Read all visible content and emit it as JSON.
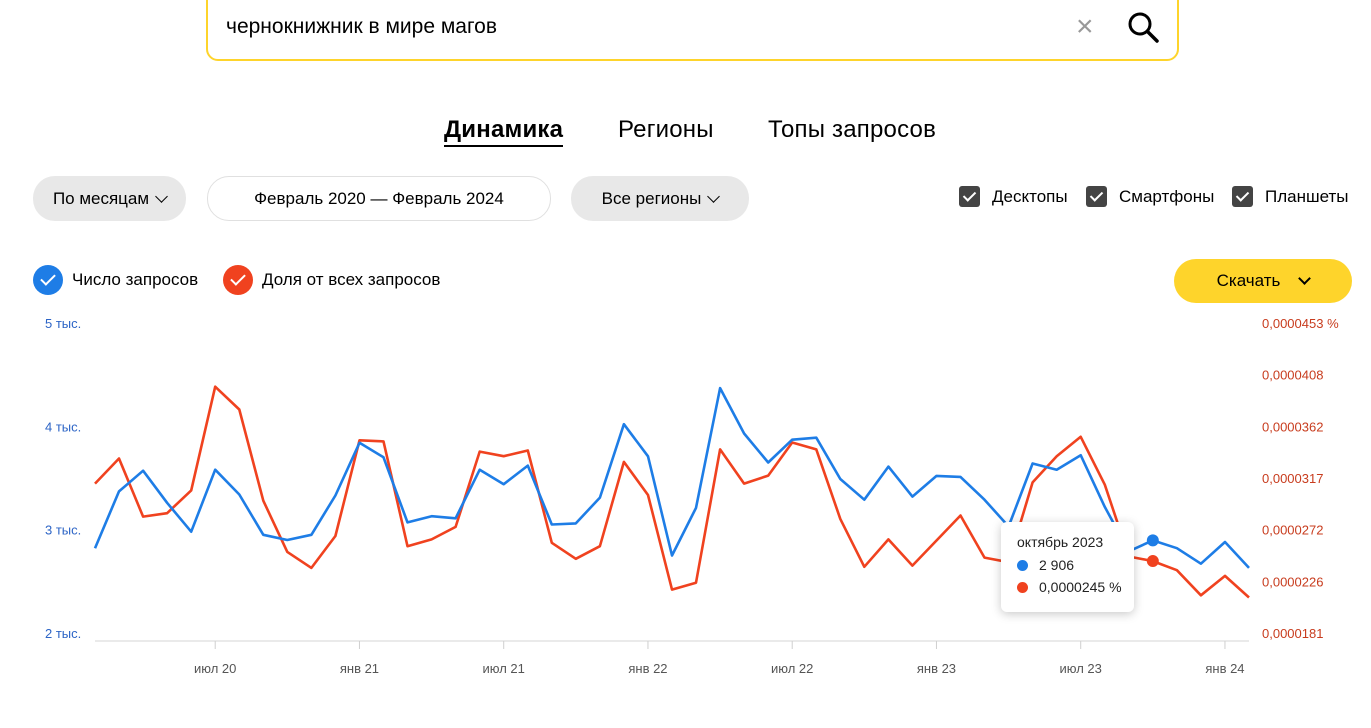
{
  "search": {
    "query": "чернокнижник в мире магов",
    "clear_icon": "close-icon",
    "search_icon": "search-icon"
  },
  "tabs": [
    {
      "label": "Динамика",
      "active": true
    },
    {
      "label": "Регионы",
      "active": false
    },
    {
      "label": "Топы запросов",
      "active": false
    }
  ],
  "filters": {
    "period_group": "По месяцам",
    "date_range": "Февраль 2020 — Февраль 2024",
    "regions": "Все регионы"
  },
  "devices": [
    {
      "label": "Десктопы",
      "checked": true
    },
    {
      "label": "Смартфоны",
      "checked": true
    },
    {
      "label": "Планшеты",
      "checked": true
    }
  ],
  "legend": [
    {
      "label": "Число запросов",
      "color": "#1e7de6"
    },
    {
      "label": "Доля от всех запросов",
      "color": "#f0421f"
    }
  ],
  "download_label": "Скачать",
  "tooltip": {
    "title": "октябрь 2023",
    "count": "2 906",
    "share": "0,0000245 %"
  },
  "chart_data": {
    "type": "line",
    "x_ticks": [
      "июл 20",
      "янв 21",
      "июл 21",
      "янв 22",
      "июл 22",
      "янв 23",
      "июл 23",
      "янв 24"
    ],
    "y_left_ticks": [
      "5 тыс.",
      "4 тыс.",
      "3 тыс.",
      "2 тыс."
    ],
    "y_left_range": [
      2000,
      5000
    ],
    "y_right_ticks": [
      "0,0000453 %",
      "0,0000408",
      "0,0000362",
      "0,0000317",
      "0,0000272",
      "0,0000226",
      "0,0000181"
    ],
    "y_right_range": [
      1.81e-05,
      4.53e-05
    ],
    "x": [
      "2020-02",
      "2020-03",
      "2020-04",
      "2020-05",
      "2020-06",
      "2020-07",
      "2020-08",
      "2020-09",
      "2020-10",
      "2020-11",
      "2020-12",
      "2021-01",
      "2021-02",
      "2021-03",
      "2021-04",
      "2021-05",
      "2021-06",
      "2021-07",
      "2021-08",
      "2021-09",
      "2021-10",
      "2021-11",
      "2021-12",
      "2022-01",
      "2022-02",
      "2022-03",
      "2022-04",
      "2022-05",
      "2022-06",
      "2022-07",
      "2022-08",
      "2022-09",
      "2022-10",
      "2022-11",
      "2022-12",
      "2023-01",
      "2023-02",
      "2023-03",
      "2023-04",
      "2023-05",
      "2023-06",
      "2023-07",
      "2023-08",
      "2023-09",
      "2023-10",
      "2023-11",
      "2023-12",
      "2024-01",
      "2024-02"
    ],
    "series": [
      {
        "name": "Число запросов",
        "color": "#1e7de6",
        "axis": "left",
        "values": [
          2830,
          3380,
          3580,
          3270,
          2990,
          3590,
          3350,
          2960,
          2910,
          2960,
          3340,
          3850,
          3710,
          3080,
          3140,
          3120,
          3590,
          3450,
          3630,
          3060,
          3070,
          3320,
          4030,
          3720,
          2760,
          3220,
          4380,
          3940,
          3660,
          3880,
          3900,
          3500,
          3300,
          3620,
          3330,
          3530,
          3520,
          3300,
          3040,
          3650,
          3590,
          3730,
          3230,
          2800,
          2906,
          2830,
          2680,
          2890,
          2640
        ]
      },
      {
        "name": "Доля от всех запросов",
        "color": "#f0421f",
        "axis": "right",
        "values": [
          3.13e-05,
          3.35e-05,
          2.84e-05,
          2.87e-05,
          3.07e-05,
          3.98e-05,
          3.78e-05,
          2.98e-05,
          2.53e-05,
          2.39e-05,
          2.67e-05,
          3.51e-05,
          3.5e-05,
          2.58e-05,
          2.64e-05,
          2.75e-05,
          3.41e-05,
          3.37e-05,
          3.42e-05,
          2.61e-05,
          2.47e-05,
          2.58e-05,
          3.32e-05,
          3.03e-05,
          2.2e-05,
          2.26e-05,
          3.43e-05,
          3.13e-05,
          3.2e-05,
          3.49e-05,
          3.43e-05,
          2.82e-05,
          2.4e-05,
          2.64e-05,
          2.41e-05,
          2.63e-05,
          2.85e-05,
          2.48e-05,
          2.44e-05,
          3.14e-05,
          3.37e-05,
          3.54e-05,
          3.12e-05,
          2.49e-05,
          2.45e-05,
          2.37e-05,
          2.15e-05,
          2.32e-05,
          2.13e-05
        ]
      }
    ],
    "highlight_index": 44
  }
}
